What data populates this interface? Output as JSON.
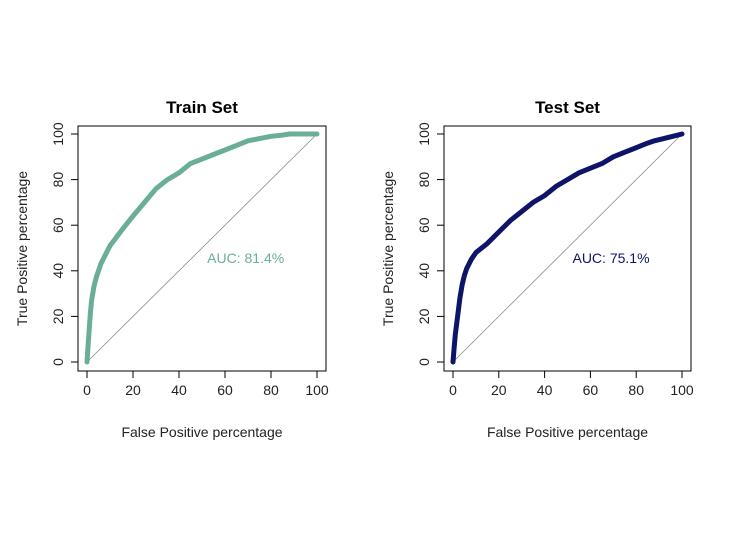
{
  "chart_data": [
    {
      "type": "line",
      "title": "Train Set",
      "xlabel": "False Positive percentage",
      "ylabel": "True Positive percentage",
      "xlim": [
        0,
        100
      ],
      "ylim": [
        0,
        100
      ],
      "xticks": [
        "0",
        "20",
        "40",
        "60",
        "80",
        "100"
      ],
      "yticks": [
        "0",
        "20",
        "40",
        "60",
        "80",
        "100"
      ],
      "annotation": "AUC: 81.4%",
      "color": "#6aae9a",
      "series": [
        {
          "x": [
            0,
            0.5,
            1,
            1.5,
            2,
            3,
            4,
            5,
            6,
            8,
            10,
            13,
            16,
            20,
            25,
            30,
            35,
            40,
            45,
            50,
            55,
            60,
            65,
            70,
            75,
            80,
            85,
            88,
            92,
            96,
            100
          ],
          "y": [
            0,
            8,
            15,
            22,
            27,
            33,
            37,
            40,
            43,
            47,
            51,
            55,
            59,
            64,
            70,
            76,
            80,
            83,
            87,
            89,
            91,
            93,
            95,
            97,
            98,
            99,
            99.5,
            100,
            100,
            100,
            100
          ]
        }
      ]
    },
    {
      "type": "line",
      "title": "Test Set",
      "xlabel": "False Positive percentage",
      "ylabel": "True Positive percentage",
      "xlim": [
        0,
        100
      ],
      "ylim": [
        0,
        100
      ],
      "xticks": [
        "0",
        "20",
        "40",
        "60",
        "80",
        "100"
      ],
      "yticks": [
        "0",
        "20",
        "40",
        "60",
        "80",
        "100"
      ],
      "annotation": "AUC: 75.1%",
      "color": "#0e1467",
      "series": [
        {
          "x": [
            0,
            0.5,
            1,
            2,
            3,
            4,
            5,
            6,
            8,
            10,
            15,
            20,
            25,
            30,
            35,
            40,
            45,
            50,
            55,
            60,
            65,
            70,
            75,
            80,
            85,
            88,
            92,
            96,
            100
          ],
          "y": [
            0,
            6,
            12,
            20,
            28,
            34,
            38,
            41,
            45,
            48,
            52,
            57,
            62,
            66,
            70,
            73,
            77,
            80,
            83,
            85,
            87,
            90,
            92,
            94,
            96,
            97,
            98,
            99,
            100
          ]
        }
      ]
    }
  ]
}
